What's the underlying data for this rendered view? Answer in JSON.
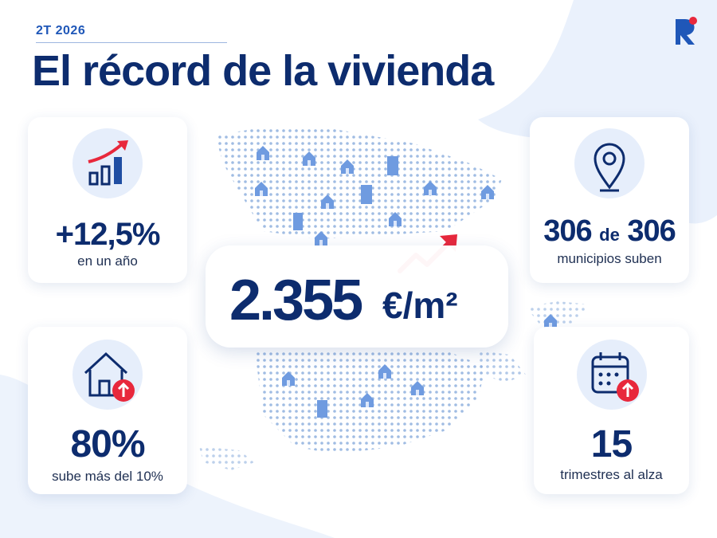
{
  "header": {
    "eyebrow": "2T 2026",
    "title": "El récord de la vivienda"
  },
  "main_stat": {
    "value": "2.355",
    "unit": "€/m²"
  },
  "cards": [
    {
      "value": "+12,5%",
      "caption": "en un año"
    },
    {
      "value": "306",
      "connector": "de",
      "total": "306",
      "caption": "municipios suben"
    },
    {
      "value": "80%",
      "caption": "sube más del 10%"
    },
    {
      "value": "15",
      "caption": "trimestres al alza"
    }
  ]
}
